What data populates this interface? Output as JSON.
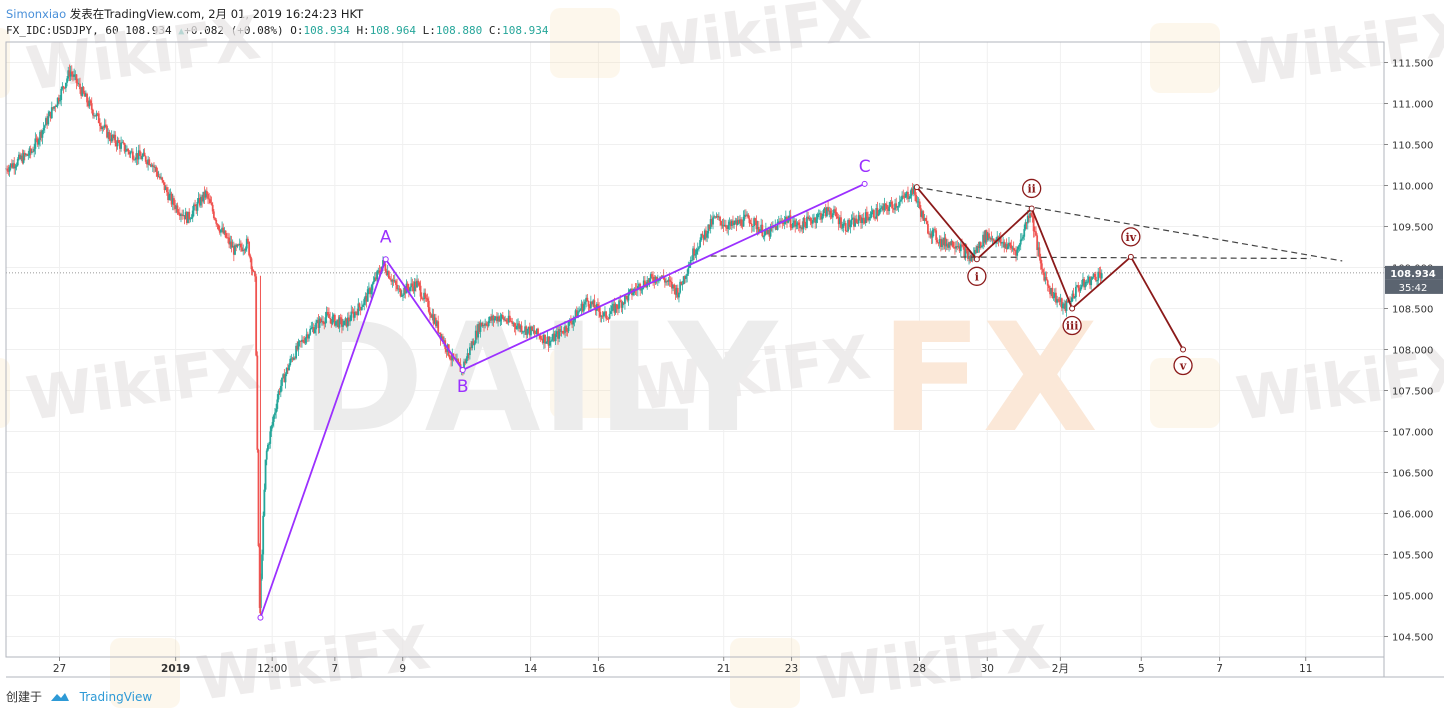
{
  "header": {
    "author": "Simonxiao",
    "published": "发表在TradingView.com, 2月 01, 2019 16:24:23 HKT",
    "symbol": "FX_IDC:USDJPY, 60",
    "last": "108.934",
    "change": "+0.082 (+0.08%)",
    "o_label": "O:",
    "o": "108.934",
    "h_label": "H:",
    "h": "108.964",
    "l_label": "L:",
    "l": "108.880",
    "c_label": "C:",
    "c": "108.934"
  },
  "footer": {
    "created": "创建于",
    "brand": "TradingView"
  },
  "watermarks": {
    "wikifx": "WikiFX",
    "dailyfx_left": "DAILY",
    "dailyfx_right": "FX"
  },
  "colors": {
    "up": "#26a69a",
    "down": "#ef5350",
    "abc": "#9b30ff",
    "impulse": "#8b1a1a",
    "grid": "#f0f0f0",
    "price_tag": "#5b6470"
  },
  "chart_data": {
    "type": "candlestick",
    "symbol": "USDJPY",
    "timeframe": "60",
    "y_range": [
      104.25,
      111.75
    ],
    "y_ticks": [
      "111.500",
      "111.000",
      "110.500",
      "110.000",
      "109.500",
      "109.000",
      "108.500",
      "108.000",
      "107.500",
      "107.000",
      "106.500",
      "106.000",
      "105.500",
      "105.000",
      "104.500"
    ],
    "x_ticks": [
      {
        "label": "27",
        "t": 2.05
      },
      {
        "label": "2019",
        "t": 6.5
      },
      {
        "label": "12:00",
        "t": 10.2
      },
      {
        "label": "7",
        "t": 12.6
      },
      {
        "label": "9",
        "t": 15.2
      },
      {
        "label": "14",
        "t": 20.1
      },
      {
        "label": "16",
        "t": 22.7
      },
      {
        "label": "21",
        "t": 27.5
      },
      {
        "label": "23",
        "t": 30.1
      },
      {
        "label": "28",
        "t": 35.0
      },
      {
        "label": "30",
        "t": 37.6
      },
      {
        "label": "2月",
        "t": 40.4
      },
      {
        "label": "5",
        "t": 43.5
      },
      {
        "label": "7",
        "t": 46.5
      },
      {
        "label": "11",
        "t": 49.8
      }
    ],
    "price_path": [
      [
        0.0,
        110.2
      ],
      [
        1.0,
        110.4
      ],
      [
        2.1,
        111.1
      ],
      [
        2.5,
        111.4
      ],
      [
        3.2,
        111.0
      ],
      [
        4.0,
        110.6
      ],
      [
        4.8,
        110.4
      ],
      [
        5.6,
        110.3
      ],
      [
        6.4,
        109.8
      ],
      [
        7.0,
        109.6
      ],
      [
        7.7,
        109.9
      ],
      [
        8.2,
        109.5
      ],
      [
        8.8,
        109.2
      ],
      [
        9.3,
        109.3
      ],
      [
        9.6,
        108.8
      ],
      [
        9.75,
        104.73
      ],
      [
        10.0,
        106.7
      ],
      [
        10.5,
        107.5
      ],
      [
        11.0,
        107.9
      ],
      [
        11.6,
        108.2
      ],
      [
        12.3,
        108.4
      ],
      [
        13.0,
        108.3
      ],
      [
        13.8,
        108.6
      ],
      [
        14.5,
        109.05
      ],
      [
        15.1,
        108.7
      ],
      [
        15.8,
        108.8
      ],
      [
        16.4,
        108.4
      ],
      [
        17.1,
        107.9
      ],
      [
        17.5,
        107.75
      ],
      [
        18.2,
        108.3
      ],
      [
        18.9,
        108.4
      ],
      [
        19.6,
        108.3
      ],
      [
        20.3,
        108.2
      ],
      [
        20.9,
        108.1
      ],
      [
        21.6,
        108.3
      ],
      [
        22.3,
        108.6
      ],
      [
        23.0,
        108.4
      ],
      [
        23.7,
        108.6
      ],
      [
        24.4,
        108.8
      ],
      [
        25.1,
        108.9
      ],
      [
        25.8,
        108.7
      ],
      [
        26.4,
        109.2
      ],
      [
        27.2,
        109.6
      ],
      [
        27.8,
        109.5
      ],
      [
        28.5,
        109.6
      ],
      [
        29.2,
        109.4
      ],
      [
        29.9,
        109.6
      ],
      [
        30.4,
        109.5
      ],
      [
        31.0,
        109.6
      ],
      [
        31.6,
        109.7
      ],
      [
        32.2,
        109.5
      ],
      [
        32.9,
        109.6
      ],
      [
        33.6,
        109.7
      ],
      [
        34.3,
        109.8
      ],
      [
        34.8,
        109.95
      ],
      [
        35.3,
        109.5
      ],
      [
        35.9,
        109.3
      ],
      [
        36.5,
        109.3
      ],
      [
        37.0,
        109.1
      ],
      [
        37.6,
        109.4
      ],
      [
        38.2,
        109.3
      ],
      [
        38.8,
        109.2
      ],
      [
        39.3,
        109.72
      ],
      [
        39.7,
        109.0
      ],
      [
        40.1,
        108.7
      ],
      [
        40.6,
        108.5
      ],
      [
        41.1,
        108.75
      ],
      [
        41.6,
        108.85
      ],
      [
        42.0,
        108.934
      ]
    ],
    "current_price": 108.934,
    "price_tag": "108.934",
    "countdown": "35:42",
    "abc_wave": {
      "points": [
        {
          "t": 9.75,
          "p": 104.73
        },
        {
          "t": 14.55,
          "p": 109.1
        },
        {
          "t": 17.5,
          "p": 107.75
        },
        {
          "t": 32.9,
          "p": 110.02
        }
      ],
      "labels": [
        "A",
        "B",
        "C"
      ]
    },
    "impulse_wave": {
      "points": [
        {
          "t": 34.9,
          "p": 109.98
        },
        {
          "t": 37.2,
          "p": 109.1
        },
        {
          "t": 39.3,
          "p": 109.72
        },
        {
          "t": 40.85,
          "p": 108.5
        },
        {
          "t": 43.1,
          "p": 109.13
        },
        {
          "t": 45.1,
          "p": 108.0
        }
      ],
      "labels": [
        "i",
        "ii",
        "iii",
        "iv",
        "v"
      ]
    },
    "trend_lines": [
      {
        "style": "dashed",
        "from": {
          "t": 34.9,
          "p": 109.98
        },
        "to": {
          "t": 51.2,
          "p": 109.08
        }
      },
      {
        "style": "dashed",
        "from": {
          "t": 27.0,
          "p": 109.14
        },
        "to": {
          "t": 50.0,
          "p": 109.11
        }
      }
    ],
    "grid": true
  }
}
